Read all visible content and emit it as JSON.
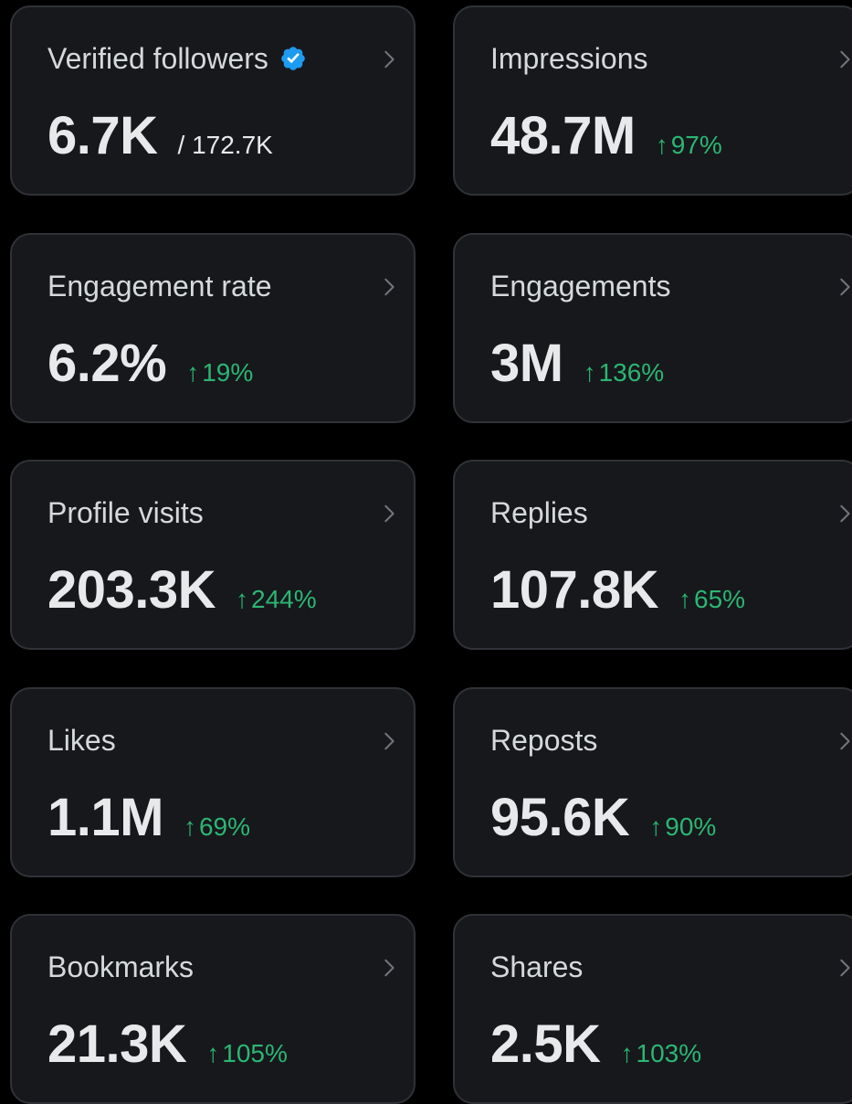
{
  "colors": {
    "background": "#000000",
    "card": "#17181c",
    "card_border": "#2f3237",
    "label": "#d6d9db",
    "value": "#e7e9ea",
    "positive": "#2bb673",
    "verified_badge": "#1d9bf0"
  },
  "icons": {
    "chevron": "chevron-right-icon",
    "verified": "verified-badge-icon",
    "up_arrow": "arrow-up-icon"
  },
  "arrow_glyph": "↑",
  "metrics": {
    "verified_followers": {
      "label": "Verified followers",
      "value": "6.7K",
      "total": "/ 172.7K"
    },
    "impressions": {
      "label": "Impressions",
      "value": "48.7M",
      "change": "97%"
    },
    "engagement_rate": {
      "label": "Engagement rate",
      "value": "6.2%",
      "change": "19%"
    },
    "engagements": {
      "label": "Engagements",
      "value": "3M",
      "change": "136%"
    },
    "profile_visits": {
      "label": "Profile visits",
      "value": "203.3K",
      "change": "244%"
    },
    "replies": {
      "label": "Replies",
      "value": "107.8K",
      "change": "65%"
    },
    "likes": {
      "label": "Likes",
      "value": "1.1M",
      "change": "69%"
    },
    "reposts": {
      "label": "Reposts",
      "value": "95.6K",
      "change": "90%"
    },
    "bookmarks": {
      "label": "Bookmarks",
      "value": "21.3K",
      "change": "105%"
    },
    "shares": {
      "label": "Shares",
      "value": "2.5K",
      "change": "103%"
    }
  }
}
